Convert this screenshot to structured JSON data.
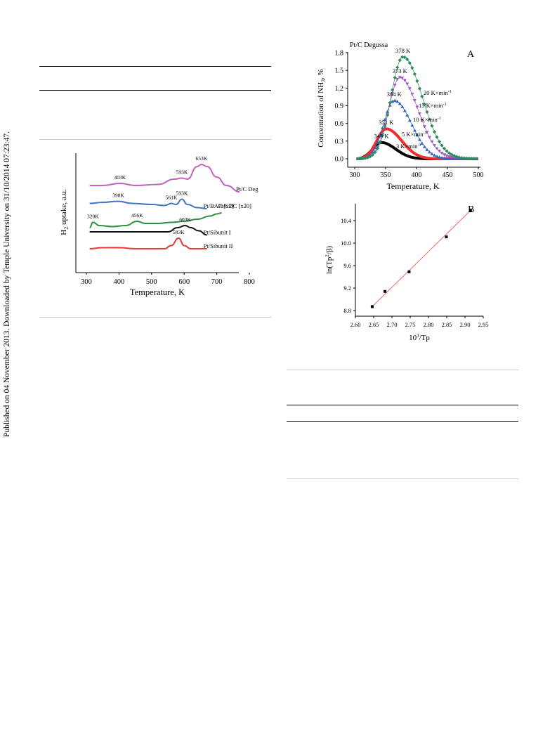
{
  "side_note": "Published on 04 November 2013. Downloaded by Temple University on 31/10/2014 07:23:47.",
  "chart_data": [
    {
      "type": "line",
      "xlabel": "Temperature, K",
      "ylabel": "H2 uptake, a.u.",
      "xticks": [
        300,
        400,
        500,
        600,
        700,
        800
      ],
      "xlim": [
        300,
        800
      ],
      "series": [
        {
          "name": "Pt/C Degussa",
          "color": "#c45fc4",
          "x": [
            310,
            350,
            403,
            450,
            520,
            570,
            593,
            610,
            640,
            653,
            670,
            700,
            730,
            770
          ],
          "y": [
            0.8,
            0.8,
            0.82,
            0.8,
            0.81,
            0.86,
            0.87,
            0.86,
            0.98,
            1.0,
            0.98,
            0.88,
            0.8,
            0.74
          ],
          "peaks": [
            {
              "x": 403,
              "label": "403K"
            },
            {
              "x": 593,
              "label": "593K"
            },
            {
              "x": 653,
              "label": "653K"
            }
          ]
        },
        {
          "name": "Pt/BAC [x2]",
          "color": "#3f75c2",
          "x": [
            310,
            350,
            398,
            440,
            500,
            540,
            561,
            575,
            593,
            610,
            640,
            670
          ],
          "y": [
            0.63,
            0.64,
            0.65,
            0.63,
            0.62,
            0.61,
            0.63,
            0.62,
            0.67,
            0.62,
            0.59,
            0.58
          ],
          "peaks": [
            {
              "x": 398,
              "label": "398K"
            },
            {
              "x": 561,
              "label": "561K"
            },
            {
              "x": 593,
              "label": "593K"
            }
          ]
        },
        {
          "name": "Pt/CDC [x20]",
          "color": "#2e8f40",
          "x": [
            310,
            320,
            340,
            380,
            420,
            456,
            480,
            520,
            560,
            600,
            640,
            680,
            700,
            715
          ],
          "y": [
            0.4,
            0.45,
            0.42,
            0.41,
            0.42,
            0.46,
            0.44,
            0.44,
            0.45,
            0.46,
            0.48,
            0.51,
            0.53,
            0.54
          ],
          "peaks": [
            {
              "x": 320,
              "label": "320K"
            },
            {
              "x": 456,
              "label": "456K"
            }
          ]
        },
        {
          "name": "Pt/Sibunit I",
          "color": "#111111",
          "x": [
            310,
            400,
            500,
            550,
            580,
            603,
            620,
            645,
            670
          ],
          "y": [
            0.36,
            0.36,
            0.36,
            0.36,
            0.4,
            0.42,
            0.4,
            0.37,
            0.33
          ],
          "peaks": [
            {
              "x": 603,
              "label": "603K"
            }
          ]
        },
        {
          "name": "Pt/Sibunit II",
          "color": "#e03a3a",
          "x": [
            310,
            350,
            400,
            450,
            500,
            540,
            560,
            583,
            600,
            620,
            645,
            670
          ],
          "y": [
            0.2,
            0.21,
            0.21,
            0.2,
            0.2,
            0.2,
            0.23,
            0.3,
            0.23,
            0.2,
            0.2,
            0.2
          ],
          "peaks": [
            {
              "x": 583,
              "label": "583K"
            }
          ]
        }
      ]
    },
    {
      "type": "scatter",
      "title": "Pt/C Degussa",
      "panel_label": "A",
      "xlabel": "Temperature, K",
      "ylabel": "Concentration of NH3, %",
      "xlim": [
        300,
        500
      ],
      "ylim": [
        -0.1,
        1.9
      ],
      "xticks": [
        300,
        350,
        400,
        450,
        500
      ],
      "yticks": [
        0.0,
        0.3,
        0.6,
        0.9,
        1.2,
        1.5,
        1.8
      ],
      "series": [
        {
          "name": "20 K×min-1",
          "color": "#2e8b57",
          "marker": "diamond",
          "peak_T": 378,
          "peak_label": "378 K",
          "peak_c": 1.73,
          "width": 34
        },
        {
          "name": "15 K×min-1",
          "color": "#9b59c6",
          "marker": "triangle-down",
          "peak_T": 373,
          "peak_label": "373 K",
          "peak_c": 1.38,
          "width": 32
        },
        {
          "name": "10 K×min-1",
          "color": "#2f62c0",
          "marker": "triangle-up",
          "peak_T": 364,
          "peak_label": "364 K",
          "peak_c": 0.99,
          "width": 30
        },
        {
          "name": "5 K×min-1",
          "color": "#ee2c2c",
          "marker": "circle",
          "peak_T": 351,
          "peak_label": "351 K",
          "peak_c": 0.51,
          "width": 27
        },
        {
          "name": "3 K×min-1",
          "color": "#000000",
          "marker": "square",
          "peak_T": 343,
          "peak_label": "343 K",
          "peak_c": 0.28,
          "width": 25
        }
      ]
    },
    {
      "type": "scatter",
      "panel_label": "B",
      "xlabel": "10³/Tp",
      "ylabel": "ln(Tp²/β)",
      "xlim": [
        2.6,
        2.95
      ],
      "ylim": [
        8.7,
        10.7
      ],
      "xticks": [
        2.6,
        2.65,
        2.7,
        2.75,
        2.8,
        2.85,
        2.9,
        2.95
      ],
      "yticks": [
        8.8,
        9.2,
        9.6,
        10.0,
        10.4
      ],
      "points": [
        {
          "x": 2.646,
          "y": 8.87
        },
        {
          "x": 2.681,
          "y": 9.14
        },
        {
          "x": 2.747,
          "y": 9.49
        },
        {
          "x": 2.849,
          "y": 10.11
        },
        {
          "x": 2.915,
          "y": 10.58
        }
      ],
      "fit": {
        "x": [
          2.646,
          2.915
        ],
        "y": [
          8.87,
          10.58
        ],
        "color": "#e8735a"
      }
    }
  ]
}
